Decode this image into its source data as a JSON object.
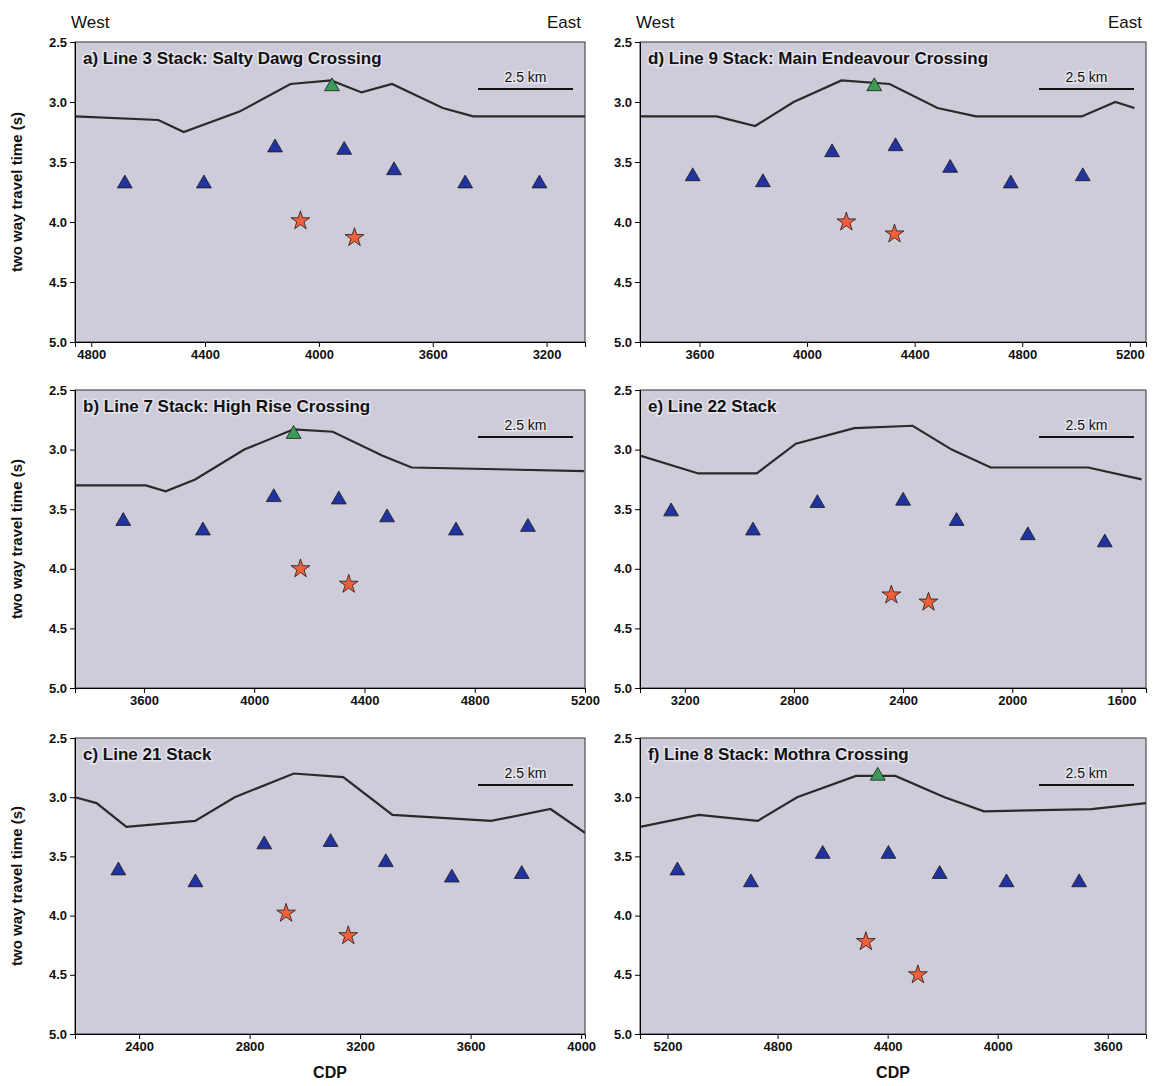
{
  "chart_data": [
    {
      "type": "scatter",
      "title": "a) Line 3 Stack: Salty Dawg Crossing",
      "ylabel": "two way travel time (s)",
      "annotations": {
        "west": "West",
        "east": "East",
        "scale": "2.5 km"
      },
      "xlim": [
        4857,
        3065
      ],
      "ylim": [
        2.5,
        5.0
      ],
      "xticks": [
        4800,
        4400,
        4000,
        3600,
        3200
      ],
      "yticks": [
        2.5,
        {
          "value": 3,
          "label": "3.0"
        },
        3.5,
        {
          "value": 4,
          "label": "4.0"
        },
        4.5,
        {
          "value": 5,
          "label": "5.0"
        }
      ],
      "series": [
        {
          "type": "line",
          "color": "#2a2a2a",
          "line_style": "solid",
          "x": [
            4857,
            4564,
            4475,
            4279,
            4100,
            3957,
            3850,
            3743,
            3565,
            3458,
            3065
          ],
          "values": [
            3.12,
            3.15,
            3.25,
            3.08,
            2.85,
            2.82,
            2.92,
            2.85,
            3.05,
            3.12,
            3.12
          ]
        },
        {
          "type": "scatter",
          "marker": "triangle",
          "color": "#2233a0",
          "x": [
            4682,
            4404,
            4154,
            3911,
            3736,
            3486,
            3225
          ],
          "values": [
            3.68,
            3.68,
            3.38,
            3.4,
            3.57,
            3.68,
            3.68
          ]
        },
        {
          "type": "scatter",
          "marker": "star",
          "color": "#f0603c",
          "x": [
            4065,
            3875
          ],
          "values": [
            3.99,
            4.13
          ]
        },
        {
          "type": "scatter",
          "marker": "triangle",
          "color": "#3c9a58",
          "x": [
            3954
          ],
          "values": [
            2.87
          ]
        }
      ]
    },
    {
      "type": "scatter",
      "title": "b) Line 7 Stack: High Rise Crossing",
      "ylabel": "two way travel time (s)",
      "annotations": {
        "scale": "2.5 km"
      },
      "xlim": [
        3350,
        5200
      ],
      "ylim": [
        2.5,
        5.0
      ],
      "xticks": [
        3600,
        4000,
        4400,
        4800,
        5200
      ],
      "yticks": [
        2.5,
        {
          "value": 3,
          "label": "3.0"
        },
        3.5,
        {
          "value": 4,
          "label": "4.0"
        },
        4.5,
        {
          "value": 5,
          "label": "5.0"
        }
      ],
      "series": [
        {
          "type": "line",
          "color": "#2a2a2a",
          "line_style": "solid",
          "x": [
            3350,
            3607,
            3679,
            3786,
            3964,
            4143,
            4285,
            4464,
            4571,
            5196
          ],
          "values": [
            3.3,
            3.3,
            3.35,
            3.25,
            3.0,
            2.83,
            2.85,
            3.05,
            3.15,
            3.18
          ]
        },
        {
          "type": "scatter",
          "marker": "triangle",
          "color": "#2233a0",
          "x": [
            3525,
            3814,
            4071,
            4307,
            4482,
            4732,
            4993
          ],
          "values": [
            3.6,
            3.68,
            3.4,
            3.42,
            3.57,
            3.68,
            3.65
          ]
        },
        {
          "type": "scatter",
          "marker": "star",
          "color": "#f0603c",
          "x": [
            4168,
            4343
          ],
          "values": [
            4.0,
            4.13
          ]
        },
        {
          "type": "scatter",
          "marker": "triangle",
          "color": "#3c9a58",
          "x": [
            4143
          ],
          "values": [
            2.87
          ]
        }
      ]
    },
    {
      "type": "scatter",
      "title": "c) Line 21 Stack",
      "ylabel": "two way travel time (s)",
      "xlabel": "CDP",
      "annotations": {
        "scale": "2.5 km"
      },
      "xlim": [
        2168,
        4014
      ],
      "ylim": [
        2.5,
        5.0
      ],
      "xticks": [
        2400,
        2800,
        3200,
        3600,
        4000
      ],
      "yticks": [
        2.5,
        {
          "value": 3,
          "label": "3.0"
        },
        3.5,
        {
          "value": 4,
          "label": "4.0"
        },
        4.5,
        {
          "value": 5,
          "label": "5.0"
        }
      ],
      "series": [
        {
          "type": "line",
          "color": "#2a2a2a",
          "line_style": "solid",
          "x": [
            2168,
            2246,
            2354,
            2603,
            2746,
            2960,
            3139,
            3317,
            3674,
            3889,
            4014
          ],
          "values": [
            3.0,
            3.05,
            3.25,
            3.2,
            3.0,
            2.8,
            2.83,
            3.15,
            3.2,
            3.1,
            3.3
          ]
        },
        {
          "type": "scatter",
          "marker": "triangle",
          "color": "#2233a0",
          "x": [
            2325,
            2604,
            2853,
            3093,
            3293,
            3532,
            3785
          ],
          "values": [
            3.62,
            3.72,
            3.4,
            3.38,
            3.55,
            3.68,
            3.65
          ]
        },
        {
          "type": "scatter",
          "marker": "star",
          "color": "#f0603c",
          "x": [
            2932,
            3157
          ],
          "values": [
            3.98,
            4.17
          ]
        }
      ]
    },
    {
      "type": "scatter",
      "title": "d) Line 9 Stack: Main Endeavour Crossing",
      "annotations": {
        "west": "West",
        "east": "East",
        "scale": "2.5 km"
      },
      "xlim": [
        3379,
        5260
      ],
      "ylim": [
        2.5,
        5.0
      ],
      "xticks": [
        3600,
        4000,
        4400,
        4800,
        5200
      ],
      "yticks": [
        2.5,
        {
          "value": 3,
          "label": "3.0"
        },
        3.5,
        {
          "value": 4,
          "label": "4.0"
        },
        4.5,
        {
          "value": 5,
          "label": "5.0"
        }
      ],
      "series": [
        {
          "type": "line",
          "color": "#2a2a2a",
          "line_style": "solid",
          "x": [
            3379,
            3664,
            3807,
            3950,
            4128,
            4307,
            4485,
            4628,
            5021,
            5146,
            5217
          ],
          "values": [
            3.12,
            3.12,
            3.2,
            3.0,
            2.82,
            2.85,
            3.05,
            3.12,
            3.12,
            3.0,
            3.05
          ]
        },
        {
          "type": "scatter",
          "marker": "triangle",
          "color": "#2233a0",
          "x": [
            3575,
            3836,
            4093,
            4329,
            4532,
            4757,
            5025
          ],
          "values": [
            3.62,
            3.67,
            3.42,
            3.37,
            3.55,
            3.68,
            3.62
          ]
        },
        {
          "type": "scatter",
          "marker": "star",
          "color": "#f0603c",
          "x": [
            4146,
            4325
          ],
          "values": [
            4.0,
            4.1
          ]
        },
        {
          "type": "scatter",
          "marker": "triangle",
          "color": "#3c9a58",
          "x": [
            4250
          ],
          "values": [
            2.87
          ]
        }
      ]
    },
    {
      "type": "scatter",
      "title": "e) Line 22 Stack",
      "annotations": {
        "scale": "2.5 km"
      },
      "xlim": [
        3364,
        1510
      ],
      "ylim": [
        2.5,
        5.0
      ],
      "xticks": [
        3200,
        2800,
        2400,
        2000,
        1600
      ],
      "yticks": [
        2.5,
        {
          "value": 3,
          "label": "3.0"
        },
        3.5,
        {
          "value": 4,
          "label": "4.0"
        },
        4.5,
        {
          "value": 5,
          "label": "5.0"
        }
      ],
      "series": [
        {
          "type": "line",
          "color": "#2a2a2a",
          "line_style": "solid",
          "x": [
            3364,
            3150,
            2936,
            2793,
            2579,
            2365,
            2222,
            2079,
            1722,
            1526
          ],
          "values": [
            3.05,
            3.2,
            3.2,
            2.95,
            2.82,
            2.8,
            3.0,
            3.15,
            3.15,
            3.25
          ]
        },
        {
          "type": "scatter",
          "marker": "triangle",
          "color": "#2233a0",
          "x": [
            3250,
            2950,
            2714,
            2400,
            2204,
            1943,
            1661
          ],
          "values": [
            3.52,
            3.68,
            3.45,
            3.43,
            3.6,
            3.72,
            3.78
          ]
        },
        {
          "type": "scatter",
          "marker": "star",
          "color": "#f0603c",
          "x": [
            2443,
            2307
          ],
          "values": [
            4.22,
            4.28
          ]
        }
      ]
    },
    {
      "type": "scatter",
      "title": "f) Line 8 Stack: Mothra Crossing",
      "xlabel": "CDP",
      "annotations": {
        "scale": "2.5 km"
      },
      "xlim": [
        5300,
        3461
      ],
      "ylim": [
        2.5,
        5.0
      ],
      "xticks": [
        5200,
        4800,
        4400,
        4000,
        3600
      ],
      "yticks": [
        2.5,
        {
          "value": 3,
          "label": "3.0"
        },
        3.5,
        {
          "value": 4,
          "label": "4.0"
        },
        4.5,
        {
          "value": 5,
          "label": "5.0"
        }
      ],
      "series": [
        {
          "type": "line",
          "color": "#2a2a2a",
          "line_style": "solid",
          "x": [
            5300,
            5086,
            4872,
            4729,
            4515,
            4372,
            4193,
            4050,
            3658,
            3461
          ],
          "values": [
            3.25,
            3.15,
            3.2,
            3.0,
            2.82,
            2.82,
            3.0,
            3.12,
            3.1,
            3.05
          ]
        },
        {
          "type": "scatter",
          "marker": "triangle",
          "color": "#2233a0",
          "x": [
            5164,
            4897,
            4636,
            4397,
            4211,
            3968,
            3704
          ],
          "values": [
            3.62,
            3.72,
            3.48,
            3.48,
            3.65,
            3.72,
            3.72
          ]
        },
        {
          "type": "scatter",
          "marker": "star",
          "color": "#f0603c",
          "x": [
            4479,
            4290
          ],
          "values": [
            4.22,
            4.5
          ]
        },
        {
          "type": "scatter",
          "marker": "triangle",
          "color": "#3c9a58",
          "x": [
            4436
          ],
          "values": [
            2.82
          ]
        }
      ]
    }
  ]
}
